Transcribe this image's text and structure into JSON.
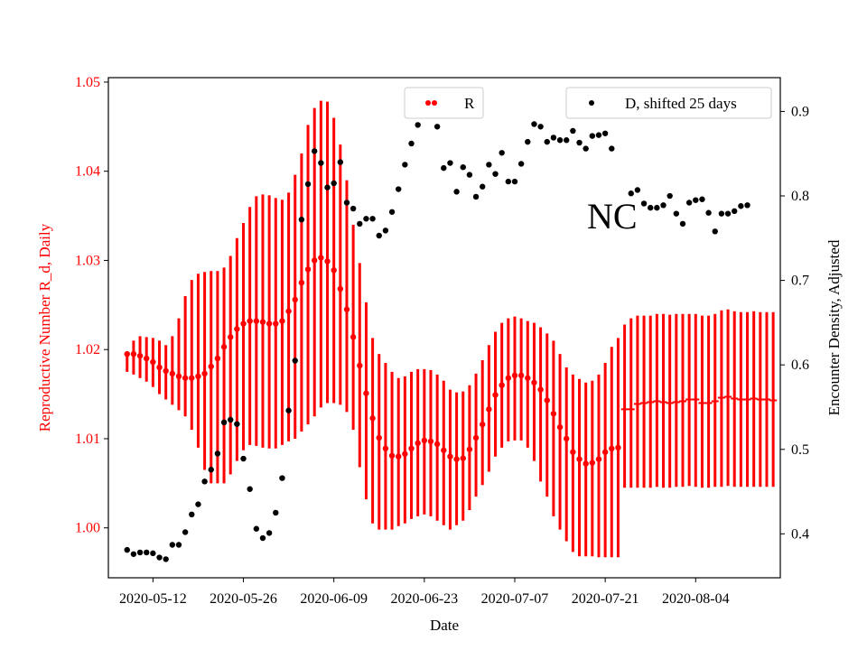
{
  "chart_data": {
    "type": "scatter",
    "xlabel": "Date",
    "ylabel_left": "Reproductive Number R_d, Daily",
    "ylabel_right": "Encounter Density, Adjusted",
    "annotation": "NC",
    "x_start_date": "2020-05-08",
    "x_range_days": [
      -2.9,
      101.1
    ],
    "x_ticks": [
      "2020-05-12",
      "2020-05-26",
      "2020-06-09",
      "2020-06-23",
      "2020-07-07",
      "2020-07-21",
      "2020-08-04"
    ],
    "y_left_range": [
      0.9944,
      1.0505
    ],
    "y_left_ticks": [
      "1.00",
      "1.01",
      "1.02",
      "1.03",
      "1.04",
      "1.05"
    ],
    "y_right_range": [
      0.348,
      0.94
    ],
    "y_right_ticks": [
      "0.4",
      "0.5",
      "0.6",
      "0.7",
      "0.8",
      "0.9"
    ],
    "colors": {
      "R": "#ff0000",
      "D": "#000000",
      "left_axis": "#ff0000",
      "right_axis": "#000000"
    },
    "legend": [
      {
        "name": "R",
        "color": "#ff0000",
        "position": "top-center"
      },
      {
        "name": "D, shifted 25 days",
        "color": "#000000",
        "position": "top-right"
      }
    ],
    "series_R": {
      "name": "R",
      "axis": "left",
      "values": [
        1.0195,
        1.0195,
        1.0193,
        1.019,
        1.0186,
        1.018,
        1.0176,
        1.0173,
        1.017,
        1.0168,
        1.0168,
        1.017,
        1.0173,
        1.0181,
        1.019,
        1.0203,
        1.0214,
        1.0223,
        1.0229,
        1.0232,
        1.0232,
        1.0231,
        1.0229,
        1.0229,
        1.0232,
        1.0243,
        1.0256,
        1.0275,
        1.029,
        1.03,
        1.0303,
        1.0299,
        1.0289,
        1.0268,
        1.0245,
        1.0214,
        1.0182,
        1.0151,
        1.0123,
        1.0101,
        1.0089,
        1.0081,
        1.008,
        1.0083,
        1.0089,
        1.0095,
        1.0098,
        1.0097,
        1.0094,
        1.0087,
        1.008,
        1.0077,
        1.0078,
        1.0088,
        1.0101,
        1.0116,
        1.0133,
        1.0149,
        1.016,
        1.0168,
        1.0171,
        1.0171,
        1.0168,
        1.0163,
        1.0155,
        1.0143,
        1.0128,
        1.0113,
        1.01,
        1.0085,
        1.0077,
        1.0072,
        1.0073,
        1.0077,
        1.0085,
        1.0089,
        1.009
      ],
      "error_lower": [
        1.0175,
        1.0172,
        1.0168,
        1.0164,
        1.0158,
        1.015,
        1.0144,
        1.0138,
        1.0132,
        1.0125,
        1.011,
        1.009,
        1.0065,
        1.005,
        1.005,
        1.005,
        1.006,
        1.0075,
        1.0087,
        1.0093,
        1.0092,
        1.009,
        1.0089,
        1.0089,
        1.0093,
        1.0097,
        1.01,
        1.0108,
        1.0116,
        1.0125,
        1.0135,
        1.014,
        1.014,
        1.0138,
        1.013,
        1.011,
        1.0068,
        1.0032,
        1.0005,
        0.9998,
        0.9998,
        0.9998,
        1.0002,
        1.0005,
        1.001,
        1.0013,
        1.0015,
        1.0013,
        1.0008,
        1.0003,
        0.9998,
        1.0003,
        1.0008,
        1.002,
        1.0035,
        1.0048,
        1.0063,
        1.008,
        1.009,
        1.0097,
        1.0098,
        1.0098,
        1.009,
        1.0075,
        1.0052,
        1.0035,
        1.0013,
        0.9998,
        0.9985,
        0.9973,
        0.9968,
        0.9968,
        0.9968,
        0.9967,
        0.9967,
        0.9967,
        0.9967
      ],
      "error_upper": [
        1.0195,
        1.021,
        1.0215,
        1.0214,
        1.0213,
        1.021,
        1.0205,
        1.0215,
        1.0235,
        1.026,
        1.0278,
        1.0285,
        1.0287,
        1.0288,
        1.0288,
        1.0292,
        1.0305,
        1.0325,
        1.0342,
        1.036,
        1.0372,
        1.0374,
        1.0373,
        1.037,
        1.0368,
        1.0376,
        1.0396,
        1.042,
        1.0452,
        1.0471,
        1.0479,
        1.0478,
        1.046,
        1.043,
        1.039,
        1.034,
        1.0297,
        1.0253,
        1.0213,
        1.0195,
        1.0185,
        1.0175,
        1.0168,
        1.017,
        1.0175,
        1.0178,
        1.0178,
        1.0177,
        1.0172,
        1.0165,
        1.0155,
        1.0152,
        1.0153,
        1.016,
        1.0173,
        1.0188,
        1.0205,
        1.022,
        1.023,
        1.0235,
        1.0237,
        1.0235,
        1.0232,
        1.023,
        1.0225,
        1.0218,
        1.021,
        1.0195,
        1.018,
        1.0172,
        1.0167,
        1.0163,
        1.0165,
        1.0172,
        1.0185,
        1.0203,
        1.0213
      ]
    },
    "series_R_tail": {
      "name": "R",
      "axis": "left",
      "x_day_start": 77,
      "values": [
        1.0133,
        1.0133,
        1.0139,
        1.014,
        1.0141,
        1.0142,
        1.0141,
        1.014,
        1.0141,
        1.0142,
        1.0144,
        1.0144,
        1.014,
        1.014,
        1.0142,
        1.0146,
        1.0147,
        1.0145,
        1.0144,
        1.0144,
        1.0145,
        1.0144,
        1.0144,
        1.0143
      ],
      "error_lower": [
        1.0045,
        1.0045,
        1.0045,
        1.0045,
        1.0045,
        1.0046,
        1.0045,
        1.0045,
        1.0046,
        1.0046,
        1.0047,
        1.0046,
        1.0045,
        1.0045,
        1.0046,
        1.0046,
        1.0047,
        1.0046,
        1.0046,
        1.0046,
        1.0046,
        1.0046,
        1.0046,
        1.0046
      ],
      "error_upper": [
        1.0228,
        1.0235,
        1.0238,
        1.0238,
        1.0238,
        1.024,
        1.024,
        1.0239,
        1.024,
        1.024,
        1.024,
        1.024,
        1.0238,
        1.0238,
        1.024,
        1.0244,
        1.0245,
        1.0243,
        1.0242,
        1.0242,
        1.0243,
        1.0242,
        1.0242,
        1.0242
      ]
    },
    "series_D": {
      "name": "D, shifted 25 days",
      "axis": "right",
      "points": [
        [
          0,
          0.381
        ],
        [
          1,
          0.376
        ],
        [
          2,
          0.378
        ],
        [
          3,
          0.378
        ],
        [
          4,
          0.377
        ],
        [
          5,
          0.372
        ],
        [
          6,
          0.37
        ],
        [
          7,
          0.387
        ],
        [
          8,
          0.387
        ],
        [
          9,
          0.402
        ],
        [
          10,
          0.423
        ],
        [
          11,
          0.435
        ],
        [
          12,
          0.462
        ],
        [
          13,
          0.476
        ],
        [
          14,
          0.495
        ],
        [
          15,
          0.532
        ],
        [
          16,
          0.535
        ],
        [
          17,
          0.53
        ],
        [
          18,
          0.489
        ],
        [
          19,
          0.453
        ],
        [
          20,
          0.406
        ],
        [
          21,
          0.395
        ],
        [
          22,
          0.401
        ],
        [
          23,
          0.425
        ],
        [
          24,
          0.466
        ],
        [
          25,
          0.546
        ],
        [
          26,
          0.605
        ],
        [
          27,
          0.772
        ],
        [
          28,
          0.814
        ],
        [
          29,
          0.853
        ],
        [
          30,
          0.839
        ],
        [
          31,
          0.81
        ],
        [
          32,
          0.815
        ],
        [
          33,
          0.84
        ],
        [
          34,
          0.792
        ],
        [
          35,
          0.785
        ],
        [
          36,
          0.767
        ],
        [
          37,
          0.773
        ],
        [
          38,
          0.773
        ],
        [
          39,
          0.753
        ],
        [
          40,
          0.759
        ],
        [
          41,
          0.781
        ],
        [
          42,
          0.808
        ],
        [
          43,
          0.837
        ],
        [
          44,
          0.862
        ],
        [
          45,
          0.884
        ],
        [
          46,
          0.91
        ],
        [
          47,
          0.913
        ],
        [
          48,
          0.882
        ],
        [
          49,
          0.833
        ],
        [
          50,
          0.839
        ],
        [
          51,
          0.805
        ],
        [
          52,
          0.834
        ],
        [
          53,
          0.825
        ],
        [
          54,
          0.799
        ],
        [
          55,
          0.811
        ],
        [
          56,
          0.837
        ],
        [
          57,
          0.826
        ],
        [
          58,
          0.851
        ],
        [
          59,
          0.817
        ],
        [
          60,
          0.817
        ],
        [
          61,
          0.838
        ],
        [
          62,
          0.864
        ],
        [
          63,
          0.885
        ],
        [
          64,
          0.882
        ],
        [
          65,
          0.864
        ],
        [
          66,
          0.869
        ],
        [
          67,
          0.866
        ],
        [
          68,
          0.866
        ],
        [
          69,
          0.877
        ],
        [
          70,
          0.863
        ],
        [
          71,
          0.856
        ],
        [
          72,
          0.871
        ],
        [
          73,
          0.872
        ],
        [
          74,
          0.874
        ],
        [
          75,
          0.856
        ],
        [
          78,
          0.803
        ],
        [
          79,
          0.807
        ],
        [
          80,
          0.791
        ],
        [
          81,
          0.786
        ],
        [
          82,
          0.786
        ],
        [
          83,
          0.789
        ],
        [
          84,
          0.8
        ],
        [
          85,
          0.779
        ],
        [
          86,
          0.767
        ],
        [
          87,
          0.792
        ],
        [
          88,
          0.795
        ],
        [
          89,
          0.796
        ],
        [
          90,
          0.78
        ],
        [
          91,
          0.758
        ],
        [
          92,
          0.779
        ],
        [
          93,
          0.779
        ],
        [
          94,
          0.782
        ],
        [
          95,
          0.788
        ],
        [
          96,
          0.789
        ]
      ]
    }
  }
}
